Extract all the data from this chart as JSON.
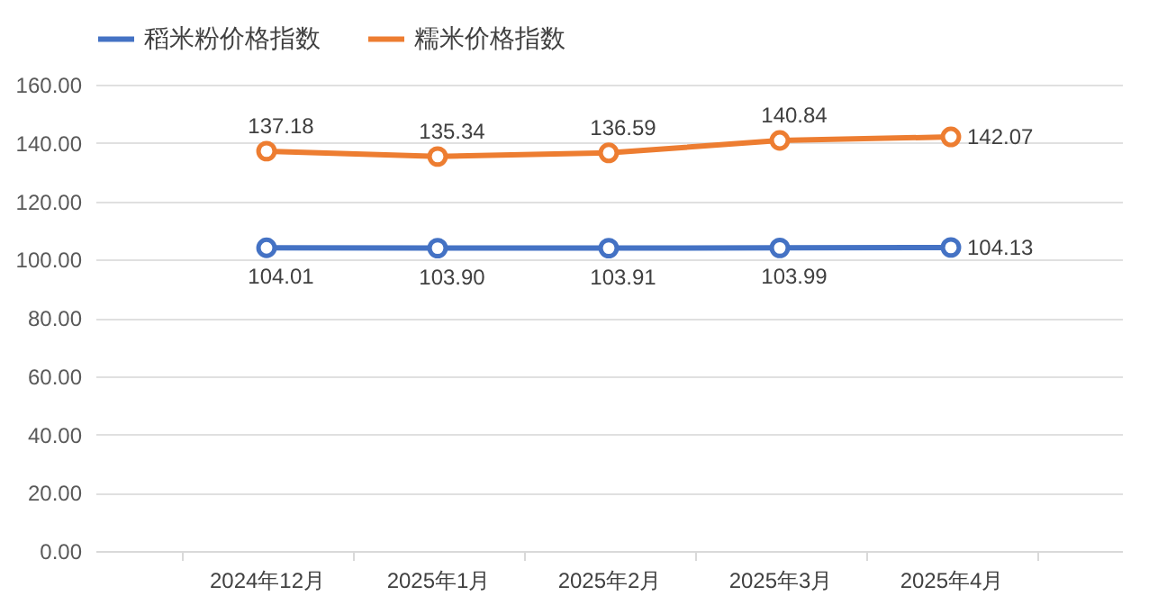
{
  "chart_data": {
    "type": "line",
    "categories": [
      "2024年12月",
      "2025年1月",
      "2025年2月",
      "2025年3月",
      "2025年4月"
    ],
    "series": [
      {
        "name": "稻米粉价格指数",
        "color": "#4472c4",
        "values": [
          104.01,
          103.9,
          103.91,
          103.99,
          104.13
        ],
        "value_labels": [
          "104.01",
          "103.90",
          "103.91",
          "103.99",
          "104.13"
        ]
      },
      {
        "name": "糯米价格指数",
        "color": "#ed7d31",
        "values": [
          137.18,
          135.34,
          136.59,
          140.84,
          142.07
        ],
        "value_labels": [
          "137.18",
          "135.34",
          "136.59",
          "140.84",
          "142.07"
        ]
      }
    ],
    "ylim": [
      0,
      160
    ],
    "yticks": [
      {
        "value": 0,
        "label": "0.00"
      },
      {
        "value": 20,
        "label": "20.00"
      },
      {
        "value": 40,
        "label": "40.00"
      },
      {
        "value": 60,
        "label": "60.00"
      },
      {
        "value": 80,
        "label": "80.00"
      },
      {
        "value": 100,
        "label": "100.00"
      },
      {
        "value": 120,
        "label": "120.00"
      },
      {
        "value": 140,
        "label": "140.00"
      },
      {
        "value": 160,
        "label": "160.00"
      }
    ],
    "grid": "y",
    "legend": "top",
    "marker": "circle",
    "line_style": "solid"
  }
}
